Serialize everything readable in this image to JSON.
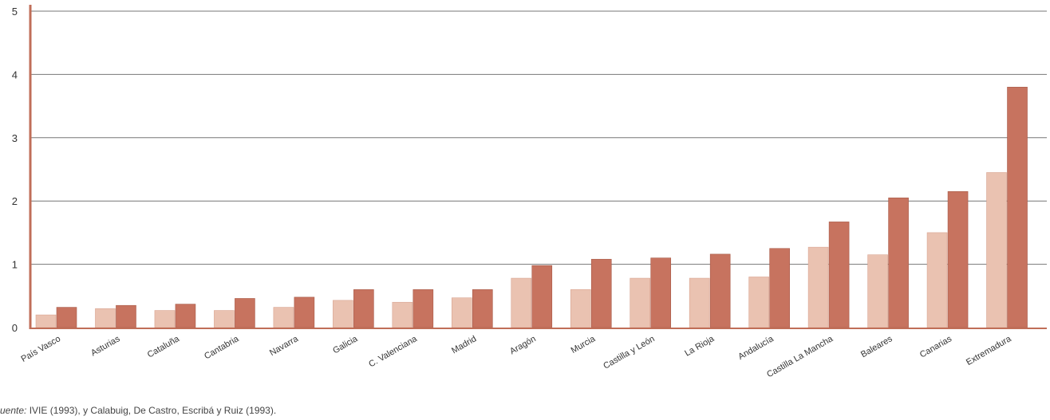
{
  "chart_data": {
    "type": "bar",
    "title": "",
    "xlabel": "",
    "ylabel": "",
    "ylim": [
      0,
      5
    ],
    "yticks": [
      0,
      1,
      2,
      3,
      4,
      5
    ],
    "grid": true,
    "categories": [
      "País Vasco",
      "Asturias",
      "Cataluña",
      "Cantabria",
      "Navarra",
      "Galicia",
      "C. Valenciana",
      "Madrid",
      "Aragón",
      "Murcia",
      "Castilla y León",
      "La Rioja",
      "Andalucía",
      "Castilla La Mancha",
      "Baleares",
      "Canarias",
      "Extremadura"
    ],
    "series": [
      {
        "values": [
          0.2,
          0.3,
          0.27,
          0.27,
          0.32,
          0.43,
          0.4,
          0.47,
          0.78,
          0.6,
          0.78,
          0.78,
          0.8,
          1.27,
          1.15,
          1.5,
          2.45
        ],
        "color": "#eac2b1"
      },
      {
        "values": [
          0.32,
          0.35,
          0.37,
          0.46,
          0.48,
          0.6,
          0.6,
          0.6,
          0.98,
          1.08,
          1.1,
          1.16,
          1.25,
          1.67,
          2.05,
          2.15,
          3.8
        ],
        "color": "#c7735f"
      }
    ]
  },
  "source": {
    "label": "uente:",
    "text": " IVIE (1993), y Calabuig, De Castro, Escribá y Ruiz (1993)."
  },
  "colors": {
    "axis": "#c06e58",
    "grid": "#777777",
    "text": "#333333"
  }
}
